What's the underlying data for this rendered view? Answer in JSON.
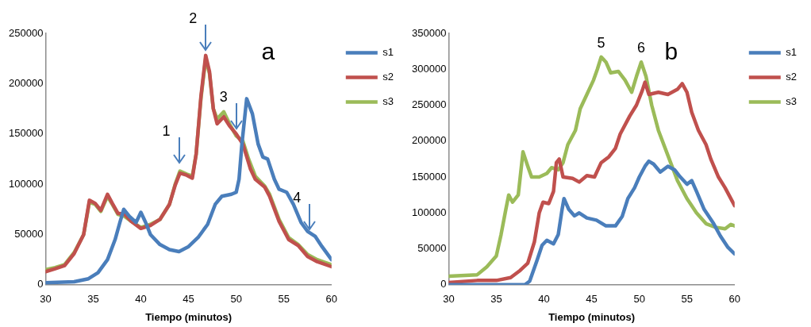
{
  "chart_data": [
    {
      "type": "line",
      "xlabel": "Tiempo (minutos)",
      "xlim": [
        30,
        60
      ],
      "xticks": [
        30,
        35,
        40,
        45,
        50,
        55,
        60
      ],
      "ylim": [
        0,
        250000
      ],
      "yticks": [
        0,
        50000,
        100000,
        150000,
        200000,
        250000
      ],
      "grid": false,
      "legend": "top right",
      "marker": "none",
      "line_style": "solid",
      "annotations": [
        "a",
        {
          "text": "1",
          "x": 44,
          "y": 118000
        },
        {
          "text": "2",
          "x": 46.8,
          "y": 230000
        },
        {
          "text": "3",
          "x": 50,
          "y": 152000
        },
        {
          "text": "4",
          "x": 57.7,
          "y": 52000
        }
      ],
      "series": [
        {
          "name": "s1",
          "color": "#4a7ebb",
          "x": [
            30,
            33,
            34.5,
            35.5,
            36.5,
            37.3,
            37.8,
            38.2,
            38.8,
            39.5,
            40,
            40.5,
            41,
            42,
            43,
            44,
            45,
            46,
            47,
            47.8,
            48.5,
            49.5,
            50,
            50.3,
            50.6,
            51.1,
            51.7,
            52.3,
            52.8,
            53.3,
            54,
            54.5,
            55.3,
            56,
            56.8,
            57.5,
            58.3,
            59,
            60
          ],
          "values": [
            2000,
            3000,
            6000,
            12000,
            25000,
            45000,
            62000,
            75000,
            68000,
            62000,
            72000,
            62000,
            50000,
            40000,
            35000,
            33000,
            38000,
            47000,
            60000,
            80000,
            88000,
            90000,
            92000,
            105000,
            140000,
            185000,
            170000,
            140000,
            127000,
            125000,
            105000,
            95000,
            92000,
            80000,
            62000,
            53000,
            48000,
            38000,
            25000
          ]
        },
        {
          "name": "s2",
          "color": "#c0504d",
          "x": [
            30,
            31,
            32,
            33,
            34,
            34.6,
            35.2,
            35.8,
            36.5,
            37,
            37.6,
            38.3,
            39,
            40,
            41,
            42,
            43,
            43.6,
            44.1,
            44.8,
            45.4,
            45.8,
            46.3,
            46.8,
            47.2,
            47.6,
            48,
            48.7,
            49.3,
            50,
            50.7,
            51.5,
            52,
            53,
            53.5,
            54.5,
            55.5,
            56.5,
            57.5,
            58.5,
            60
          ],
          "values": [
            13000,
            16000,
            19000,
            31000,
            50000,
            84000,
            81000,
            74000,
            90000,
            81000,
            71000,
            70000,
            63000,
            56000,
            59000,
            65000,
            80000,
            99000,
            111000,
            109000,
            106000,
            130000,
            187000,
            228000,
            212000,
            175000,
            160000,
            167000,
            158000,
            150000,
            140000,
            115000,
            105000,
            97000,
            88000,
            63000,
            45000,
            39000,
            28000,
            23000,
            18000
          ]
        },
        {
          "name": "s3",
          "color": "#9bbb59",
          "x": [
            30,
            31,
            32,
            33,
            34,
            34.6,
            35.2,
            35.8,
            36.5,
            37,
            37.6,
            38.3,
            39,
            40,
            41,
            42,
            43,
            43.6,
            44.1,
            44.8,
            45.4,
            45.8,
            46.3,
            46.8,
            47.2,
            47.6,
            48,
            48.7,
            49.3,
            50,
            50.7,
            51.3,
            52,
            53,
            53.5,
            54.5,
            55.5,
            56.5,
            57.5,
            58.5,
            60
          ],
          "values": [
            15000,
            17000,
            20000,
            32000,
            50000,
            82000,
            80000,
            73000,
            88000,
            80000,
            70000,
            68000,
            63000,
            57000,
            60000,
            65000,
            80000,
            100000,
            113000,
            110000,
            108000,
            130000,
            185000,
            225000,
            210000,
            175000,
            165000,
            172000,
            160000,
            148000,
            143000,
            125000,
            108000,
            98000,
            90000,
            65000,
            47000,
            40000,
            30000,
            25000,
            20000
          ]
        }
      ]
    },
    {
      "type": "line",
      "xlabel": "Tiempo (minutos)",
      "xlim": [
        30,
        60
      ],
      "xticks": [
        30,
        35,
        40,
        45,
        50,
        55,
        60
      ],
      "ylim": [
        0,
        350000
      ],
      "yticks": [
        0,
        50000,
        100000,
        150000,
        200000,
        250000,
        300000,
        350000
      ],
      "grid": false,
      "legend": "top right",
      "marker": "none",
      "line_style": "solid",
      "annotations": [
        "b",
        {
          "text": "5",
          "x": 46,
          "y": 317000
        },
        {
          "text": "6",
          "x": 50.2,
          "y": 310000
        }
      ],
      "series": [
        {
          "name": "s1",
          "color": "#4a7ebb",
          "x": [
            30,
            38,
            38.5,
            39.3,
            39.8,
            40.3,
            41,
            41.5,
            41.9,
            42.1,
            42.6,
            43.2,
            43.7,
            44.5,
            45.5,
            46.5,
            47.5,
            48.2,
            48.8,
            49.5,
            50,
            50.6,
            51,
            51.5,
            52.2,
            53,
            53.7,
            54.3,
            55,
            55.5,
            56,
            56.8,
            57.8,
            58.5,
            59.3,
            60
          ],
          "values": [
            0,
            0,
            5000,
            35000,
            55000,
            62000,
            57000,
            70000,
            105000,
            120000,
            105000,
            96000,
            100000,
            93000,
            90000,
            82000,
            82000,
            95000,
            120000,
            135000,
            150000,
            165000,
            172000,
            168000,
            157000,
            165000,
            160000,
            150000,
            140000,
            145000,
            130000,
            105000,
            85000,
            68000,
            52000,
            43000
          ]
        },
        {
          "name": "s2",
          "color": "#c0504d",
          "x": [
            30,
            33,
            35,
            36.5,
            37.5,
            38.3,
            39,
            39.5,
            39.9,
            40.5,
            41,
            41.3,
            41.6,
            42,
            43,
            43.7,
            44.5,
            45.3,
            46,
            46.8,
            47.5,
            48,
            49,
            49.7,
            50.3,
            50.6,
            51,
            52,
            53,
            54,
            54.5,
            55,
            55.5,
            56.2,
            57,
            57.5,
            58.3,
            59,
            60
          ],
          "values": [
            3000,
            6000,
            6000,
            10000,
            20000,
            30000,
            60000,
            100000,
            115000,
            113000,
            130000,
            170000,
            175000,
            150000,
            148000,
            143000,
            152000,
            150000,
            170000,
            178000,
            190000,
            210000,
            235000,
            250000,
            270000,
            282000,
            265000,
            268000,
            265000,
            272000,
            280000,
            268000,
            240000,
            215000,
            195000,
            175000,
            150000,
            135000,
            110000
          ]
        },
        {
          "name": "s3",
          "color": "#9bbb59",
          "x": [
            30,
            33,
            34,
            35,
            35.5,
            36,
            36.3,
            36.7,
            37.3,
            37.8,
            38.3,
            38.7,
            39.5,
            40.3,
            40.8,
            41.5,
            42,
            42.5,
            43.3,
            43.8,
            44.5,
            45.2,
            45.6,
            46,
            46.5,
            47,
            47.8,
            48.5,
            49.2,
            49.7,
            50.2,
            50.7,
            51.3,
            52,
            53,
            54,
            55,
            56,
            57,
            58,
            59,
            59.6,
            60
          ],
          "values": [
            12000,
            14000,
            25000,
            40000,
            70000,
            105000,
            125000,
            115000,
            125000,
            185000,
            165000,
            150000,
            150000,
            155000,
            163000,
            160000,
            170000,
            195000,
            215000,
            245000,
            265000,
            285000,
            300000,
            317000,
            310000,
            295000,
            297000,
            285000,
            268000,
            290000,
            310000,
            290000,
            250000,
            215000,
            180000,
            145000,
            120000,
            100000,
            85000,
            80000,
            78000,
            84000,
            82000
          ]
        }
      ]
    }
  ]
}
